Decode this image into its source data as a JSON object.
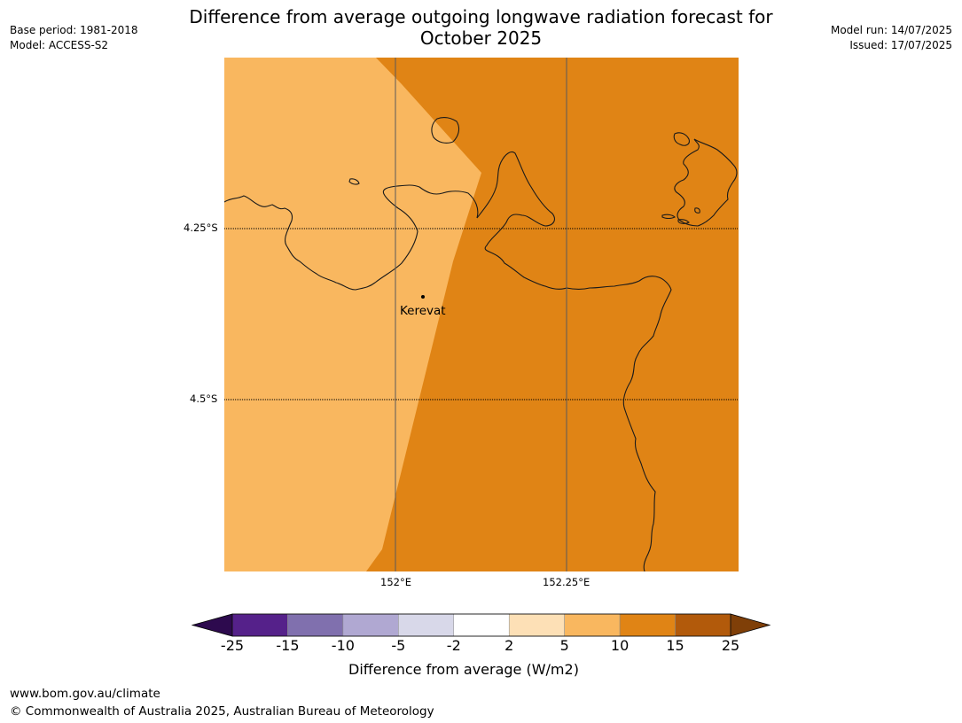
{
  "title_line1": "Difference from average outgoing longwave radiation forecast for",
  "title_line2": "October 2025",
  "base_period": "Base period: 1981-2018",
  "model": "Model: ACCESS-S2",
  "model_run": "Model run: 14/07/2025",
  "issued": "Issued: 17/07/2025",
  "map": {
    "lat_labels": [
      "4.25°S",
      "4.5°S"
    ],
    "lon_labels": [
      "152°E",
      "152.25°E"
    ],
    "place_label": "Kerevat"
  },
  "colorbar": {
    "label": "Difference from average (W/m2)",
    "ticks": [
      "-25",
      "-15",
      "-10",
      "-5",
      "-2",
      "2",
      "5",
      "10",
      "15",
      "25"
    ],
    "colors": [
      "#55218a",
      "#8070ae",
      "#b0a8d2",
      "#d8d8e9",
      "#ffffff",
      "#fde0b6",
      "#f9b75f",
      "#e08415",
      "#b25a0b"
    ],
    "under_color": "#2d0a4e",
    "over_color": "#7f3f08"
  },
  "footer_url": "www.bom.gov.au/climate",
  "footer_copyright": "© Commonwealth of Australia 2025, Australian Bureau of Meteorology"
}
